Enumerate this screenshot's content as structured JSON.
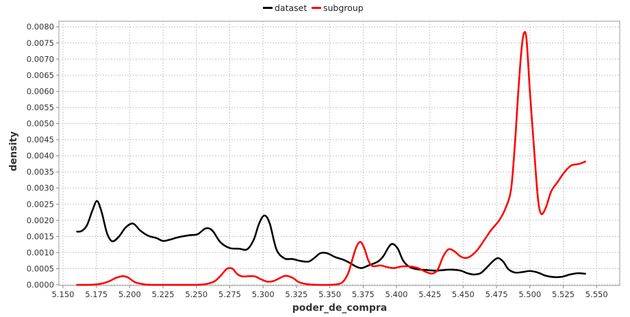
{
  "chart_data": {
    "type": "line",
    "title": "",
    "xlabel": "poder_de_compra",
    "ylabel": "density",
    "xlim": [
      5.15,
      5.55
    ],
    "ylim": [
      0,
      0.0082
    ],
    "grid": true,
    "legend_position": "top-center",
    "x_ticks": [
      "5.150",
      "5.175",
      "5.200",
      "5.225",
      "5.250",
      "5.275",
      "5.300",
      "5.325",
      "5.350",
      "5.375",
      "5.400",
      "5.425",
      "5.450",
      "5.475",
      "5.500",
      "5.525",
      "5.550"
    ],
    "y_ticks": [
      "0.0000",
      "0.0005",
      "0.0010",
      "0.0015",
      "0.0020",
      "0.0025",
      "0.0030",
      "0.0035",
      "0.0040",
      "0.0045",
      "0.0050",
      "0.0055",
      "0.0060",
      "0.0065",
      "0.0070",
      "0.0075",
      "0.0080"
    ],
    "series": [
      {
        "name": "dataset",
        "color": "#000000",
        "points": [
          [
            5.16,
            0.00165
          ],
          [
            5.164,
            0.00167
          ],
          [
            5.168,
            0.00185
          ],
          [
            5.172,
            0.0023
          ],
          [
            5.1755,
            0.0026
          ],
          [
            5.179,
            0.00225
          ],
          [
            5.183,
            0.0016
          ],
          [
            5.187,
            0.00135
          ],
          [
            5.192,
            0.0015
          ],
          [
            5.197,
            0.00178
          ],
          [
            5.2025,
            0.0019
          ],
          [
            5.208,
            0.00168
          ],
          [
            5.214,
            0.00152
          ],
          [
            5.22,
            0.00145
          ],
          [
            5.225,
            0.00136
          ],
          [
            5.23,
            0.0014
          ],
          [
            5.237,
            0.00148
          ],
          [
            5.245,
            0.00154
          ],
          [
            5.251,
            0.00157
          ],
          [
            5.257,
            0.00175
          ],
          [
            5.262,
            0.00168
          ],
          [
            5.268,
            0.00132
          ],
          [
            5.275,
            0.00114
          ],
          [
            5.282,
            0.00112
          ],
          [
            5.288,
            0.0011
          ],
          [
            5.293,
            0.0014
          ],
          [
            5.297,
            0.0019
          ],
          [
            5.301,
            0.00215
          ],
          [
            5.305,
            0.0019
          ],
          [
            5.31,
            0.0011
          ],
          [
            5.316,
            0.00082
          ],
          [
            5.322,
            0.0008
          ],
          [
            5.328,
            0.00074
          ],
          [
            5.334,
            0.00072
          ],
          [
            5.338,
            0.00082
          ],
          [
            5.343,
            0.00098
          ],
          [
            5.348,
            0.00098
          ],
          [
            5.354,
            0.00086
          ],
          [
            5.36,
            0.00078
          ],
          [
            5.365,
            0.00068
          ],
          [
            5.37,
            0.00056
          ],
          [
            5.374,
            0.00052
          ],
          [
            5.379,
            0.0006
          ],
          [
            5.386,
            0.00072
          ],
          [
            5.39,
            0.00088
          ],
          [
            5.394,
            0.00116
          ],
          [
            5.397,
            0.00127
          ],
          [
            5.401,
            0.00112
          ],
          [
            5.405,
            0.00075
          ],
          [
            5.41,
            0.00055
          ],
          [
            5.416,
            0.00048
          ],
          [
            5.422,
            0.00046
          ],
          [
            5.43,
            0.00044
          ],
          [
            5.44,
            0.00047
          ],
          [
            5.448,
            0.00044
          ],
          [
            5.453,
            0.00036
          ],
          [
            5.458,
            0.00032
          ],
          [
            5.463,
            0.00036
          ],
          [
            5.468,
            0.00055
          ],
          [
            5.472,
            0.00072
          ],
          [
            5.476,
            0.00083
          ],
          [
            5.48,
            0.00072
          ],
          [
            5.484,
            0.00048
          ],
          [
            5.489,
            0.00038
          ],
          [
            5.495,
            0.0004
          ],
          [
            5.5,
            0.00043
          ],
          [
            5.506,
            0.00038
          ],
          [
            5.512,
            0.00028
          ],
          [
            5.518,
            0.00024
          ],
          [
            5.524,
            0.00025
          ],
          [
            5.53,
            0.00032
          ],
          [
            5.536,
            0.00036
          ],
          [
            5.542,
            0.00034
          ]
        ]
      },
      {
        "name": "subgroup",
        "color": "#ff0000",
        "points": [
          [
            5.16,
            0.0
          ],
          [
            5.17,
            0.0
          ],
          [
            5.178,
            3e-05
          ],
          [
            5.184,
            0.0001
          ],
          [
            5.19,
            0.00022
          ],
          [
            5.195,
            0.00027
          ],
          [
            5.199,
            0.00022
          ],
          [
            5.204,
            8e-05
          ],
          [
            5.21,
            2e-05
          ],
          [
            5.216,
            0.0
          ],
          [
            5.23,
            0.0
          ],
          [
            5.25,
            0.0
          ],
          [
            5.258,
            3e-05
          ],
          [
            5.264,
            0.00012
          ],
          [
            5.269,
            0.00032
          ],
          [
            5.273,
            0.0005
          ],
          [
            5.277,
            0.0005
          ],
          [
            5.281,
            0.00032
          ],
          [
            5.285,
            0.00026
          ],
          [
            5.29,
            0.00027
          ],
          [
            5.294,
            0.00026
          ],
          [
            5.298,
            0.00018
          ],
          [
            5.303,
            0.0001
          ],
          [
            5.308,
            0.00012
          ],
          [
            5.313,
            0.00022
          ],
          [
            5.317,
            0.00028
          ],
          [
            5.322,
            0.00022
          ],
          [
            5.327,
            8e-05
          ],
          [
            5.333,
            2e-05
          ],
          [
            5.34,
            0.0
          ],
          [
            5.35,
            0.0
          ],
          [
            5.356,
            2e-05
          ],
          [
            5.36,
            0.0001
          ],
          [
            5.364,
            0.00038
          ],
          [
            5.367,
            0.0008
          ],
          [
            5.37,
            0.00118
          ],
          [
            5.373,
            0.00133
          ],
          [
            5.376,
            0.00112
          ],
          [
            5.379,
            0.00075
          ],
          [
            5.382,
            0.00058
          ],
          [
            5.388,
            0.0006
          ],
          [
            5.393,
            0.00055
          ],
          [
            5.398,
            0.00052
          ],
          [
            5.404,
            0.00057
          ],
          [
            5.41,
            0.00057
          ],
          [
            5.416,
            0.00052
          ],
          [
            5.422,
            0.0004
          ],
          [
            5.427,
            0.00035
          ],
          [
            5.431,
            0.00048
          ],
          [
            5.435,
            0.00088
          ],
          [
            5.439,
            0.0011
          ],
          [
            5.443,
            0.00105
          ],
          [
            5.448,
            0.00088
          ],
          [
            5.452,
            0.00083
          ],
          [
            5.456,
            0.0009
          ],
          [
            5.461,
            0.0011
          ],
          [
            5.466,
            0.0014
          ],
          [
            5.471,
            0.0017
          ],
          [
            5.477,
            0.002
          ],
          [
            5.482,
            0.0024
          ],
          [
            5.486,
            0.003
          ],
          [
            5.489,
            0.0045
          ],
          [
            5.491,
            0.0058
          ],
          [
            5.4935,
            0.0072
          ],
          [
            5.4955,
            0.0078
          ],
          [
            5.4975,
            0.0076
          ],
          [
            5.5,
            0.006
          ],
          [
            5.503,
            0.0043
          ],
          [
            5.506,
            0.0027
          ],
          [
            5.5085,
            0.0022
          ],
          [
            5.512,
            0.0024
          ],
          [
            5.516,
            0.0029
          ],
          [
            5.521,
            0.0032
          ],
          [
            5.526,
            0.0035
          ],
          [
            5.531,
            0.0037
          ],
          [
            5.537,
            0.00375
          ],
          [
            5.542,
            0.00383
          ]
        ]
      }
    ]
  }
}
